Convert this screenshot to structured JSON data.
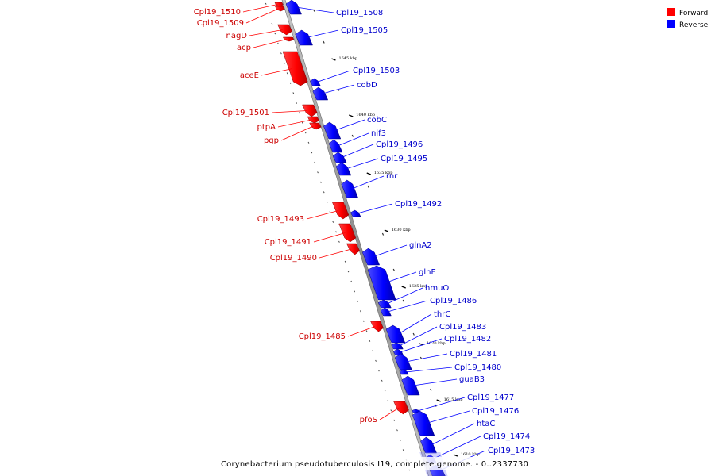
{
  "caption": "Corynebacterium pseudotuberculosis I19, complete genome. - 0..2337730",
  "legend": [
    {
      "label": "Forward",
      "color": "#ff0000"
    },
    {
      "label": "Reverse",
      "color": "#0000ff"
    }
  ],
  "kbp_ticks": [
    "1645 kbp",
    "1640 kbp",
    "1635 kbp",
    "1630 kbp",
    "1625 kbp",
    "1620 kbp",
    "1615 kbp",
    "1610 kbp"
  ],
  "forward_genes": [
    "Cpl19_1510",
    "Cpl19_1509",
    "nagD",
    "acp",
    "aceE",
    "Cpl19_1501",
    "ptpA",
    "pgp",
    "Cpl19_1493",
    "Cpl19_1491",
    "Cpl19_1490",
    "Cpl19_1485",
    "pfoS"
  ],
  "reverse_genes": [
    "Cpl19_1508",
    "Cpl19_1505",
    "Cpl19_1503",
    "cobD",
    "cobC",
    "nif3",
    "Cpl19_1496",
    "Cpl19_1495",
    "rnr",
    "Cpl19_1492",
    "glnA2",
    "glnE",
    "hmuO",
    "Cpl19_1486",
    "thrC",
    "Cpl19_1483",
    "Cpl19_1482",
    "Cpl19_1481",
    "Cpl19_1480",
    "guaB3",
    "Cpl19_1477",
    "Cpl19_1476",
    "htaC",
    "Cpl19_1474",
    "Cpl19_1473"
  ]
}
